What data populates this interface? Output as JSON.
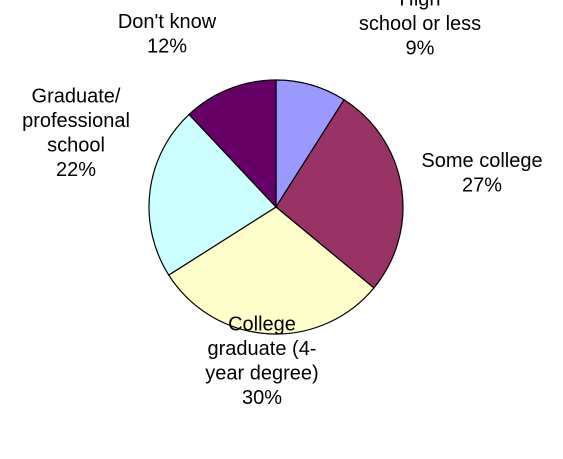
{
  "chart_data": {
    "type": "pie",
    "title": "",
    "start_angle_deg": 0,
    "direction": "clockwise",
    "slices": [
      {
        "label": [
          "High",
          "school or less"
        ],
        "value_label": "9%",
        "value": 9,
        "color": "#9999ff"
      },
      {
        "label": [
          "Some college"
        ],
        "value_label": "27%",
        "value": 27,
        "color": "#993366"
      },
      {
        "label": [
          "College",
          "graduate (4-",
          "year degree)"
        ],
        "value_label": "30%",
        "value": 30,
        "color": "#ffffcc"
      },
      {
        "label": [
          "Graduate/",
          "professional",
          "school"
        ],
        "value_label": "22%",
        "value": 22,
        "color": "#ccffff"
      },
      {
        "label": [
          "Don't know"
        ],
        "value_label": "12%",
        "value": 12,
        "color": "#660066"
      }
    ]
  }
}
